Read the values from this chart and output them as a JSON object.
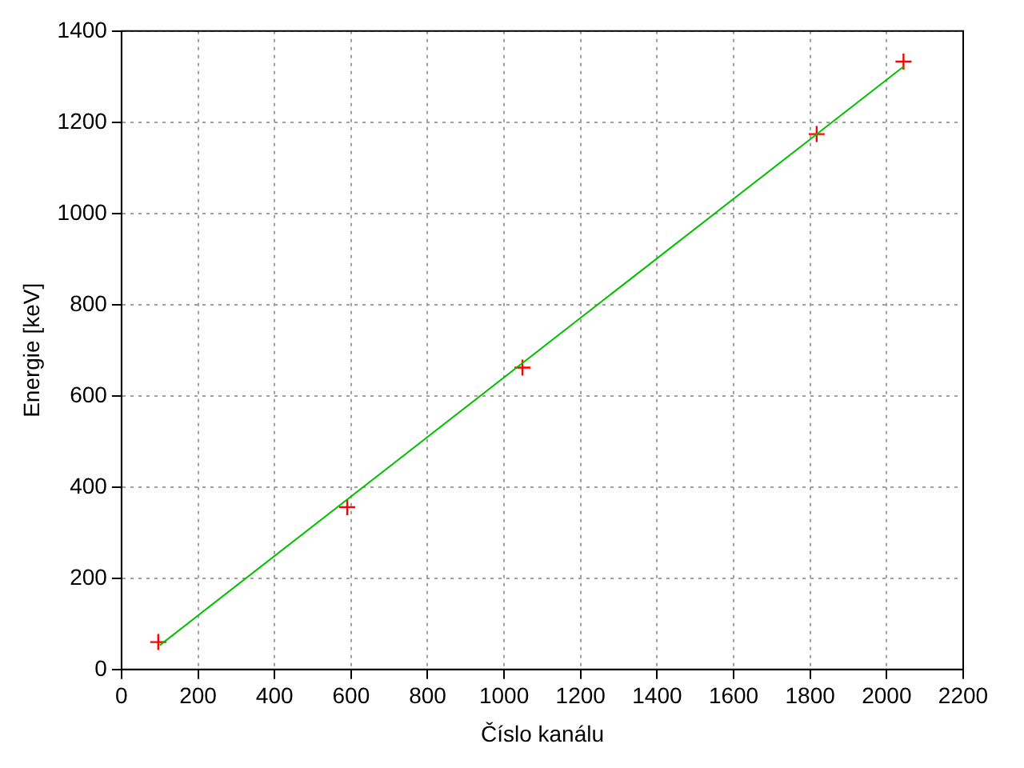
{
  "chart_data": {
    "type": "scatter",
    "xlabel": "Číslo kanálu",
    "ylabel": "Energie [keV]",
    "xlim": [
      0,
      2200
    ],
    "xticks": [
      0,
      200,
      400,
      600,
      800,
      1000,
      1200,
      1400,
      1600,
      1800,
      2000,
      2200
    ],
    "ylim": [
      0,
      1400
    ],
    "yticks": [
      0,
      200,
      400,
      600,
      800,
      1000,
      1200,
      1400
    ],
    "grid": true,
    "legend": false,
    "marker": "cross",
    "series": [
      {
        "type": "line",
        "color": "#00c000",
        "x": [
          100,
          2044
        ],
        "values": [
          53,
          1322
        ],
        "marker": "none"
      },
      {
        "color": "#ff0000",
        "x": [
          96,
          590,
          1048,
          1817,
          2044
        ],
        "values": [
          60,
          356,
          662,
          1174,
          1333
        ]
      }
    ]
  }
}
